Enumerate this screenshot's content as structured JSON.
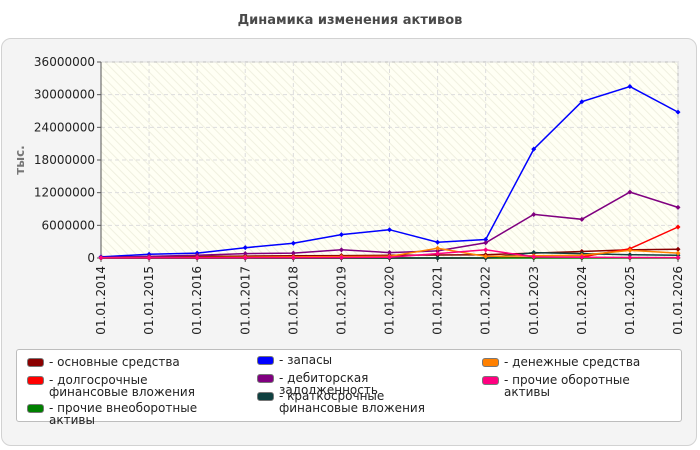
{
  "title": "Динамика изменения активов",
  "chart_data": {
    "type": "line",
    "ylabel": "тыс.",
    "xlabel": "",
    "ylim": [
      0,
      36000000
    ],
    "y_ticks": [
      0,
      6000000,
      12000000,
      18000000,
      24000000,
      30000000,
      36000000
    ],
    "y_tick_labels": [
      "0",
      "6000000",
      "12000000",
      "18000000",
      "24000000",
      "30000000",
      "36000000"
    ],
    "grid": true,
    "legend_position": "bottom",
    "x": [
      "01.01.2014",
      "01.01.2015",
      "01.01.2016",
      "01.01.2017",
      "01.01.2018",
      "01.01.2019",
      "01.01.2020",
      "01.01.2021",
      "01.01.2022",
      "01.01.2023",
      "01.01.2024",
      "01.01.2025",
      "01.01.2026"
    ],
    "series": [
      {
        "name": "основные средства",
        "color": "#8b0000",
        "values": [
          200000,
          250000,
          300000,
          350000,
          400000,
          450000,
          500000,
          550000,
          600000,
          900000,
          1200000,
          1500000,
          1600000
        ]
      },
      {
        "name": "долгосрочные финансовые вложения",
        "color": "#ff0000",
        "values": [
          0,
          0,
          0,
          0,
          0,
          0,
          0,
          0,
          0,
          100000,
          200000,
          1700000,
          5700000
        ]
      },
      {
        "name": "прочие внеоборотные активы",
        "color": "#008000",
        "values": [
          0,
          0,
          0,
          0,
          0,
          0,
          0,
          0,
          0,
          0,
          0,
          0,
          0
        ]
      },
      {
        "name": "запасы",
        "color": "#0000ff",
        "values": [
          200000,
          700000,
          900000,
          1900000,
          2700000,
          4300000,
          5200000,
          2900000,
          3400000,
          20000000,
          28700000,
          31500000,
          26800000
        ]
      },
      {
        "name": "дебиторская задолженность",
        "color": "#800080",
        "values": [
          100000,
          300000,
          500000,
          800000,
          900000,
          1500000,
          1000000,
          1300000,
          2800000,
          8000000,
          7100000,
          12100000,
          9300000
        ]
      },
      {
        "name": "краткосрочные финансовые вложения",
        "color": "#0f4040",
        "values": [
          0,
          0,
          0,
          0,
          0,
          0,
          0,
          0,
          0,
          1000000,
          800000,
          600000,
          500000
        ]
      },
      {
        "name": "денежные средства",
        "color": "#ff8000",
        "values": [
          50000,
          80000,
          100000,
          150000,
          200000,
          250000,
          300000,
          1800000,
          300000,
          400000,
          500000,
          1400000,
          900000
        ]
      },
      {
        "name": "прочие оборотные активы",
        "color": "#ff0080",
        "values": [
          20000,
          30000,
          40000,
          50000,
          80000,
          100000,
          150000,
          800000,
          1500000,
          200000,
          150000,
          100000,
          80000
        ]
      }
    ]
  },
  "legend": {
    "col1": [
      0,
      1,
      2
    ],
    "col2": [
      3,
      4,
      5
    ],
    "col3": [
      6,
      7
    ]
  }
}
